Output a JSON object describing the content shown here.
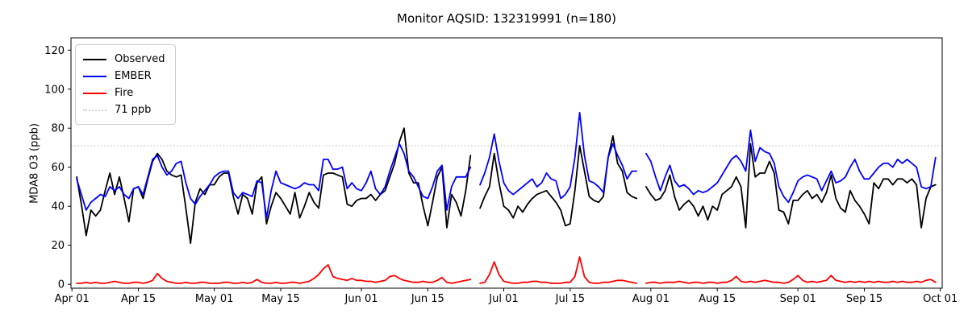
{
  "chart_data": {
    "type": "line",
    "title": "Monitor AQSID: 132319991 (n=180)",
    "xlabel": "",
    "ylabel": "MDA8 O3 (ppb)",
    "x_unit": "day index, 0 = Apr 01",
    "x_tick_labels": [
      "Apr 01",
      "Apr 15",
      "May 01",
      "May 15",
      "Jun 01",
      "Jun 15",
      "Jul 01",
      "Jul 15",
      "Aug 01",
      "Aug 15",
      "Sep 01",
      "Sep 15",
      "Oct 01"
    ],
    "x_tick_days": [
      0,
      14,
      30,
      44,
      61,
      75,
      91,
      105,
      122,
      136,
      153,
      167,
      183
    ],
    "y_ticks": [
      0,
      20,
      40,
      60,
      80,
      100,
      120
    ],
    "ylim": [
      -2,
      126.3
    ],
    "xlim_days": [
      -0.2,
      183.4
    ],
    "grid": false,
    "legend": {
      "position": "upper left",
      "entries": [
        "Observed",
        "EMBER",
        "Fire",
        "71 ppb"
      ]
    },
    "threshold": {
      "label": "71 ppb",
      "value": 71,
      "color": "#d3d3d3",
      "linestyle": "dotted"
    },
    "missing_days": [
      "Apr 01",
      "Jun 25",
      "Jul 30"
    ],
    "series": [
      {
        "name": "Observed",
        "color": "#000000",
        "values": [
          null,
          55,
          41,
          25,
          38,
          35,
          38,
          48,
          57,
          46,
          55,
          44,
          32,
          49,
          50,
          44,
          54,
          63,
          67,
          64,
          58,
          56,
          55,
          56,
          39,
          21,
          42,
          49,
          46,
          51,
          51,
          55,
          57,
          57,
          45,
          36,
          46,
          44,
          36,
          52,
          55,
          31,
          40,
          47,
          44,
          40,
          36,
          47,
          34,
          40,
          47,
          42,
          39,
          56,
          57,
          57,
          56,
          55,
          41,
          40,
          43,
          44,
          44,
          46,
          43,
          46,
          48,
          55,
          62,
          73,
          80,
          57,
          52,
          52,
          40,
          30,
          42,
          55,
          60,
          29,
          46,
          42,
          35,
          48,
          66,
          null,
          39,
          45,
          50,
          67,
          52,
          40,
          38,
          34,
          40,
          37,
          41,
          44,
          46,
          47,
          48,
          45,
          42,
          38,
          30,
          31,
          48,
          71,
          58,
          45,
          43,
          42,
          45,
          65,
          76,
          62,
          58,
          47,
          45,
          44,
          null,
          50,
          46,
          43,
          44,
          48,
          56,
          45,
          38,
          41,
          43,
          40,
          35,
          40,
          33,
          40,
          38,
          46,
          48,
          50,
          55,
          50,
          29,
          72,
          55,
          57,
          57,
          63,
          57,
          38,
          37,
          31,
          43,
          43,
          46,
          48,
          44,
          46,
          42,
          47,
          56,
          44,
          39,
          37,
          48,
          43,
          40,
          36,
          31,
          52,
          49,
          54,
          54,
          51,
          54,
          54,
          52,
          54,
          51,
          29,
          44,
          50,
          51
        ]
      },
      {
        "name": "EMBER",
        "color": "#0000ff",
        "values": [
          null,
          54,
          46,
          38,
          42,
          44,
          46,
          45,
          50,
          48,
          50,
          46,
          44,
          49,
          50,
          46,
          55,
          64,
          66,
          60,
          56,
          58,
          62,
          63,
          52,
          44,
          41,
          45,
          48,
          51,
          55,
          57,
          58,
          58,
          47,
          44,
          47,
          46,
          45,
          53,
          52,
          34,
          48,
          58,
          52,
          51,
          50,
          49,
          50,
          52,
          51,
          51,
          48,
          64,
          64,
          59,
          59,
          60,
          49,
          52,
          49,
          48,
          52,
          58,
          49,
          46,
          50,
          58,
          65,
          72,
          67,
          58,
          55,
          50,
          45,
          44,
          50,
          58,
          61,
          38,
          50,
          55,
          55,
          55,
          60,
          null,
          51,
          57,
          65,
          77,
          63,
          52,
          48,
          46,
          48,
          50,
          52,
          54,
          50,
          52,
          57,
          54,
          53,
          44,
          46,
          50,
          65,
          88,
          66,
          53,
          52,
          50,
          47,
          65,
          72,
          66,
          61,
          54,
          58,
          58,
          null,
          67,
          63,
          55,
          48,
          55,
          61,
          53,
          50,
          51,
          49,
          46,
          48,
          47,
          48,
          50,
          52,
          56,
          60,
          64,
          66,
          63,
          58,
          79,
          63,
          70,
          68,
          67,
          62,
          50,
          45,
          42,
          47,
          53,
          55,
          56,
          55,
          54,
          48,
          53,
          58,
          52,
          53,
          55,
          60,
          64,
          58,
          54,
          54,
          57,
          60,
          62,
          62,
          60,
          64,
          62,
          64,
          62,
          60,
          50,
          49,
          50,
          65
        ]
      },
      {
        "name": "Fire",
        "color": "#ff0000",
        "values": [
          null,
          0.5,
          0.5,
          1,
          0.5,
          1,
          0.5,
          0.5,
          1,
          1.5,
          1,
          0.5,
          0.5,
          1,
          1,
          0.5,
          1,
          2,
          5.5,
          3,
          1.5,
          1,
          0.5,
          0.5,
          1,
          0.5,
          0.5,
          1,
          1,
          0.5,
          0.5,
          0.5,
          1,
          1,
          0.5,
          0.5,
          1,
          0.5,
          1,
          2.5,
          1,
          0.5,
          0.5,
          1,
          0.5,
          0.5,
          1,
          1,
          0.5,
          1,
          1.5,
          3,
          5,
          8,
          10,
          4,
          3,
          2.5,
          2,
          3,
          2,
          2,
          1.5,
          1.5,
          1,
          1.5,
          2,
          4,
          4.5,
          3,
          2,
          1.5,
          1,
          1,
          1.5,
          1,
          1,
          2,
          3.5,
          1,
          0.5,
          1,
          1.5,
          2,
          2.5,
          null,
          0.5,
          1,
          5,
          11.5,
          5,
          1.5,
          1,
          0.5,
          0.5,
          1,
          1,
          1.5,
          1.5,
          1,
          1,
          0.5,
          0.5,
          0.5,
          1,
          1,
          4,
          14,
          4,
          1,
          0.5,
          0.5,
          1,
          1,
          1.5,
          2,
          2,
          1.5,
          1,
          0.5,
          null,
          0.5,
          1,
          1,
          0.5,
          1,
          1,
          1,
          1.5,
          1,
          0.5,
          1,
          1,
          0.5,
          1,
          1,
          0.5,
          1,
          1,
          2,
          4,
          1.5,
          1,
          1.5,
          1,
          1.5,
          2,
          1.5,
          1,
          1,
          0.5,
          1,
          2.5,
          4.5,
          2,
          1,
          1.5,
          1,
          1.5,
          2,
          4.5,
          2,
          1.5,
          1,
          1.5,
          1,
          1.5,
          1,
          1.5,
          1,
          1.5,
          1,
          1,
          1.5,
          1,
          1.5,
          1,
          1,
          1.5,
          1,
          2,
          2.5,
          1
        ]
      }
    ]
  }
}
